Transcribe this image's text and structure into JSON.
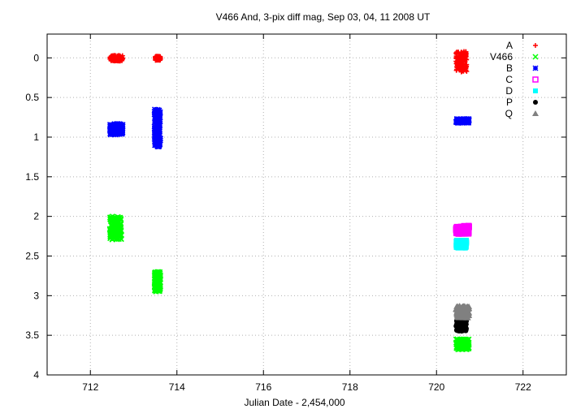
{
  "chart_data": {
    "type": "scatter",
    "title": "V466 And,  3-pix diff mag, Sep 03, 04, 11 2008 UT",
    "xlabel": "Julian Date - 2,454,000",
    "ylabel": "",
    "xlim": [
      711,
      723
    ],
    "ylim": [
      4,
      -0.3
    ],
    "y_inverted": true,
    "grid": true,
    "legend_position": "top-right",
    "xticks": [
      712,
      714,
      716,
      718,
      720,
      722
    ],
    "yticks": [
      0,
      0.5,
      1,
      1.5,
      2,
      2.5,
      3,
      3.5,
      4
    ],
    "xtick_labels": [
      "712",
      "714",
      "716",
      "718",
      "720",
      "722"
    ],
    "ytick_labels": [
      "0",
      "0.5",
      "1",
      "1.5",
      "2",
      "2.5",
      "3",
      "3.5",
      "4"
    ],
    "series": [
      {
        "name": "A",
        "color": "#ff0000",
        "marker": "plus",
        "clusters": [
          {
            "x": [
              712.45,
              712.75
            ],
            "y": [
              -0.03,
              0.04
            ]
          },
          {
            "x": [
              713.5,
              713.62
            ],
            "y": [
              -0.02,
              0.03
            ]
          },
          {
            "x": [
              720.45,
              720.7
            ],
            "y": [
              -0.08,
              0.18
            ]
          }
        ]
      },
      {
        "name": "V466",
        "color": "#00ff00",
        "marker": "cross",
        "clusters": [
          {
            "x": [
              712.45,
              712.72
            ],
            "y": [
              2.0,
              2.3
            ]
          },
          {
            "x": [
              713.48,
              713.62
            ],
            "y": [
              2.7,
              2.95
            ]
          },
          {
            "x": [
              720.45,
              720.75
            ],
            "y": [
              3.55,
              3.68
            ]
          }
        ]
      },
      {
        "name": "B",
        "color": "#0000ff",
        "marker": "star",
        "clusters": [
          {
            "x": [
              712.45,
              712.75
            ],
            "y": [
              0.83,
              0.97
            ]
          },
          {
            "x": [
              713.48,
              713.62
            ],
            "y": [
              0.65,
              1.12
            ]
          },
          {
            "x": [
              720.45,
              720.75
            ],
            "y": [
              0.77,
              0.82
            ]
          }
        ]
      },
      {
        "name": "C",
        "color": "#ff00ff",
        "marker": "open-square",
        "clusters": [
          {
            "x": [
              720.45,
              720.75
            ],
            "y": [
              2.12,
              2.22
            ]
          }
        ]
      },
      {
        "name": "D",
        "color": "#00ffff",
        "marker": "filled-square",
        "clusters": [
          {
            "x": [
              720.45,
              720.7
            ],
            "y": [
              2.3,
              2.4
            ]
          }
        ]
      },
      {
        "name": "P",
        "color": "#000000",
        "marker": "filled-circle",
        "clusters": [
          {
            "x": [
              720.45,
              720.7
            ],
            "y": [
              3.25,
              3.45
            ]
          }
        ]
      },
      {
        "name": "Q",
        "color": "#808080",
        "marker": "filled-triangle",
        "clusters": [
          {
            "x": [
              720.45,
              720.75
            ],
            "y": [
              3.13,
              3.28
            ]
          }
        ]
      }
    ]
  }
}
